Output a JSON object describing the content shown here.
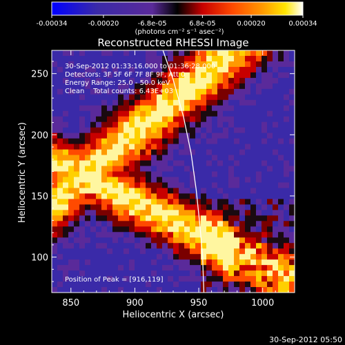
{
  "colorbar": {
    "tick_labels": [
      "-0.00034",
      "-0.00020",
      "-6.8e-05",
      "6.8e-05",
      "0.00020",
      "0.00034"
    ],
    "tick_values": [
      -0.00034,
      -0.0002,
      -6.8e-05,
      6.8e-05,
      0.0002,
      0.00034
    ],
    "range": [
      -0.00034,
      0.00034
    ],
    "unit_label": "(photons cm⁻² s⁻¹ asec⁻²)",
    "colors": [
      "#0000ff",
      "#3a2aa8",
      "#5a2a9a",
      "#000000",
      "#c80000",
      "#ff4a00",
      "#ff9a00",
      "#ffe600",
      "#ffffff"
    ]
  },
  "chart_data": {
    "type": "heatmap",
    "title": "Reconstructed RHESSI Image",
    "xlabel": "Heliocentric X (arcsec)",
    "ylabel": "Heliocentric Y (arcsec)",
    "xlim": [
      835,
      1025
    ],
    "ylim": [
      71,
      269
    ],
    "xticks": [
      850,
      900,
      950,
      1000
    ],
    "yticks": [
      100,
      150,
      200,
      250
    ],
    "annotations": [
      "30-Sep-2012 01:33:16.000 to 01:36:28.000",
      "Detectors: 3F 5F 6F 7F 8F 9F, Att 0",
      "Energy Range: 25.0 - 50.0 keV",
      "Clean    Total counts: 6.43E+03"
    ],
    "peak_label": "Position of Peak = [916,119]",
    "peak": [
      916,
      119
    ],
    "limb_curve": [
      [
        922,
        269
      ],
      [
        930,
        245
      ],
      [
        938,
        215
      ],
      [
        944,
        185
      ],
      [
        948,
        155
      ],
      [
        951,
        125
      ],
      [
        953,
        100
      ],
      [
        954,
        71
      ]
    ]
  },
  "footer_timestamp": "30-Sep-2012 05:50"
}
